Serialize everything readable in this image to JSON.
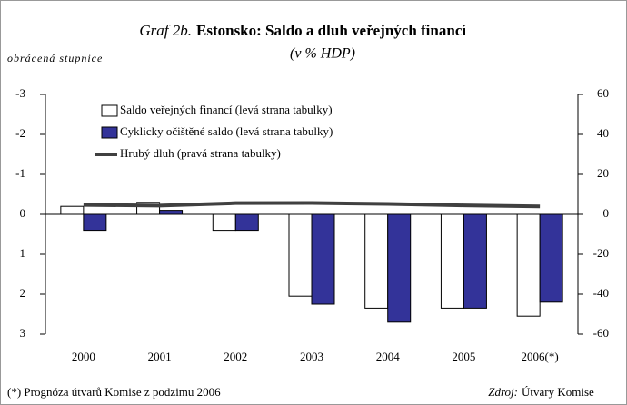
{
  "chart_data": {
    "type": "bar",
    "title_prefix": "Graf 2b.",
    "title": "Estonsko: Saldo a dluh veřejných financí",
    "subtitle": "(v % HDP)",
    "axis_note": "obrácená stupnice",
    "categories": [
      "2000",
      "2001",
      "2002",
      "2003",
      "2004",
      "2005",
      "2006(*)"
    ],
    "series": [
      {
        "name": "Saldo veřejných financí (levá strana tabulky)",
        "color": "#ffffff",
        "type": "bar",
        "values": [
          -0.2,
          -0.3,
          0.4,
          2.05,
          2.35,
          2.35,
          2.55
        ]
      },
      {
        "name": "Cyklicky očištěné saldo (levá strana tabulky)",
        "color": "#333399",
        "type": "bar",
        "values": [
          0.4,
          -0.1,
          0.4,
          2.25,
          2.7,
          2.35,
          2.2
        ]
      },
      {
        "name": "Hrubý dluh (pravá strana tabulky)",
        "color": "#404040",
        "type": "line",
        "axis": "y2",
        "values": [
          4.7,
          4.4,
          5.6,
          5.7,
          5.2,
          4.5,
          4.0
        ]
      }
    ],
    "ylim": [
      3,
      -3
    ],
    "yticks": [
      -3,
      -2,
      -1,
      0,
      1,
      2,
      3
    ],
    "y2lim": [
      -60,
      60
    ],
    "y2ticks": [
      60,
      40,
      20,
      0,
      -20,
      -40,
      -60
    ],
    "footnote": "(*) Prognóza útvarů Komise z podzimu 2006",
    "source_label": "Zdroj:",
    "source": "Útvary Komise"
  }
}
